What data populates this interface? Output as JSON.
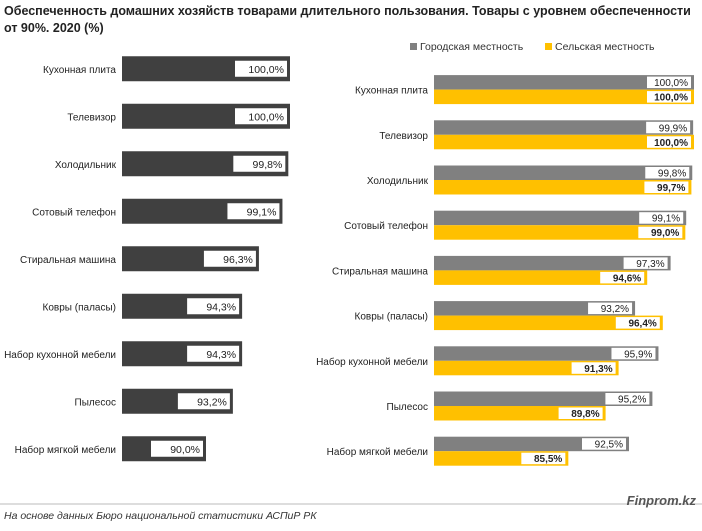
{
  "title": "Обеспеченность домашних хозяйств товарами длительного пользования. Товары с уровнем обеспеченности от 90%. 2020 (%)",
  "source": "На основе данных Бюро национальной статистики АСПиР РК",
  "brand": "Finprom.kz",
  "colors": {
    "total": "#404040",
    "urban": "#808080",
    "rural": "#ffc000",
    "label_bg": "#ffffff"
  },
  "chart_data": [
    {
      "type": "bar",
      "orientation": "horizontal",
      "categories": [
        "Кухонная плита",
        "Телевизор",
        "Холодильник",
        "Сотовый телефон",
        "Стиральная машина",
        "Ковры (паласы)",
        "Набор кухонной мебели",
        "Пылесос",
        "Набор мягкой мебели"
      ],
      "series": [
        {
          "values": [
            100.0,
            100.0,
            99.8,
            99.1,
            96.3,
            94.3,
            94.3,
            93.2,
            90.0
          ],
          "labels": [
            "100,0%",
            "100,0%",
            "99,8%",
            "99,1%",
            "96,3%",
            "94,3%",
            "94,3%",
            "93,2%",
            "90,0%"
          ]
        }
      ],
      "xlim": [
        80,
        100
      ]
    },
    {
      "type": "bar",
      "orientation": "horizontal",
      "categories": [
        "Кухонная плита",
        "Телевизор",
        "Холодильник",
        "Сотовый телефон",
        "Стиральная машина",
        "Ковры (паласы)",
        "Набор кухонной мебели",
        "Пылесос",
        "Набор мягкой мебели"
      ],
      "series": [
        {
          "name": "Городская местность",
          "values": [
            100.0,
            99.9,
            99.8,
            99.1,
            97.3,
            93.2,
            95.9,
            95.2,
            92.5
          ],
          "labels": [
            "100,0%",
            "99,9%",
            "99,8%",
            "99,1%",
            "97,3%",
            "93,2%",
            "95,9%",
            "95,2%",
            "92,5%"
          ]
        },
        {
          "name": "Сельская местность",
          "values": [
            100.0,
            100.0,
            99.7,
            99.0,
            94.6,
            96.4,
            91.3,
            89.8,
            85.5
          ],
          "labels": [
            "100,0%",
            "100,0%",
            "99,7%",
            "99,0%",
            "94,6%",
            "96,4%",
            "91,3%",
            "89,8%",
            "85,5%"
          ]
        }
      ],
      "legend": "top-right",
      "xlim": [
        70,
        100
      ]
    }
  ]
}
